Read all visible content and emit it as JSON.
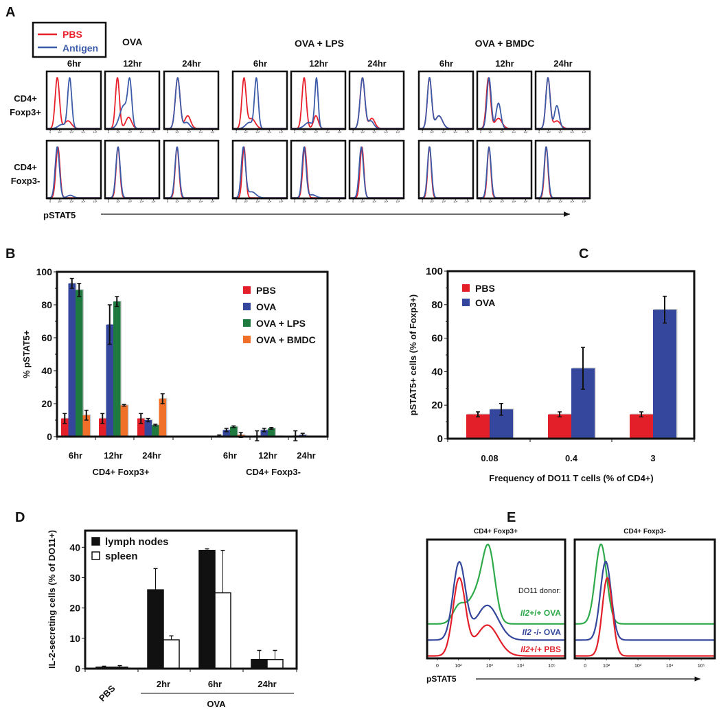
{
  "panels": {
    "a": "A",
    "b": "B",
    "c": "C",
    "d": "D",
    "e": "E"
  },
  "colors": {
    "pbs": "#e3202a",
    "ova": "#34479c",
    "lps": "#1f7a3f",
    "bmdc": "#f0702a",
    "hist_red": "#e8202a",
    "hist_blue": "#3b5ba8",
    "hist_green": "#2eaa4a"
  },
  "panel_a": {
    "legend": [
      "PBS",
      "Antigen"
    ],
    "conditions": [
      "OVA",
      "OVA + LPS",
      "OVA + BMDC"
    ],
    "times": [
      "6hr",
      "12hr",
      "24hr"
    ],
    "rows": [
      [
        "CD4+",
        "Foxp3+"
      ],
      [
        "CD4+",
        "Foxp3-"
      ]
    ],
    "xlabel": "pSTAT5"
  },
  "chart_data": [
    {
      "id": "B",
      "type": "bar",
      "ylabel": "% pSTAT5+",
      "ylim": [
        0,
        100
      ],
      "yticks": [
        0,
        20,
        40,
        60,
        80,
        100
      ],
      "categories": [
        "6hr",
        "12hr",
        "24hr",
        "6hr",
        "12hr",
        "24hr"
      ],
      "groups": [
        "CD4+ Foxp3+",
        "CD4+ Foxp3-"
      ],
      "legend_position": "top-right",
      "series": [
        {
          "name": "PBS",
          "color": "#e3202a",
          "values": [
            11,
            11,
            11,
            0.5,
            0.5,
            0.5
          ],
          "errors": [
            3,
            3,
            3,
            0.5,
            3,
            3
          ]
        },
        {
          "name": "OVA",
          "color": "#34479c",
          "values": [
            93,
            68,
            10,
            4,
            4,
            1
          ],
          "errors": [
            3,
            12,
            1,
            1,
            1,
            1
          ]
        },
        {
          "name": "OVA + LPS",
          "color": "#1f7a3f",
          "values": [
            89,
            82,
            7,
            6,
            5,
            0.3
          ],
          "errors": [
            4,
            3,
            0.5,
            0.5,
            0.5,
            0
          ]
        },
        {
          "name": "OVA + BMDC",
          "color": "#f0702a",
          "values": [
            13,
            19,
            23,
            1,
            0.3,
            0.3
          ],
          "errors": [
            3,
            0.5,
            3,
            1.5,
            0,
            0
          ]
        }
      ]
    },
    {
      "id": "C",
      "type": "bar",
      "ylabel": "pSTAT5+ cells (% of Foxp3+)",
      "xlabel": "Frequency of DO11 T cells (% of CD4+)",
      "ylim": [
        0,
        100
      ],
      "yticks": [
        0,
        20,
        40,
        60,
        80,
        100
      ],
      "categories": [
        "0.08",
        "0.4",
        "3"
      ],
      "legend_position": "top-left",
      "series": [
        {
          "name": "PBS",
          "color": "#e3202a",
          "values": [
            14.5,
            14.5,
            14.5
          ],
          "errors": [
            1.5,
            1.5,
            1.5
          ]
        },
        {
          "name": "OVA",
          "color": "#34479c",
          "values": [
            17.5,
            42,
            77
          ],
          "errors": [
            3.5,
            12.5,
            8
          ]
        }
      ]
    },
    {
      "id": "D",
      "type": "bar",
      "ylabel": "IL-2-secreting cells (% of DO11+)",
      "ylim": [
        0,
        45.5
      ],
      "yticks": [
        0,
        10,
        20,
        30,
        40
      ],
      "categories": [
        "PBS",
        "2hr",
        "6hr",
        "24hr"
      ],
      "group_label": "OVA",
      "legend_position": "top-left",
      "series": [
        {
          "name": "lymph nodes",
          "color": "#111111",
          "values": [
            0.5,
            26,
            39,
            3
          ],
          "errors": [
            0.3,
            7,
            0.5,
            3
          ]
        },
        {
          "name": "spleen",
          "color": "#ffffff",
          "values": [
            0.5,
            9.5,
            25,
            3
          ],
          "errors": [
            0.5,
            1.3,
            14,
            3
          ]
        }
      ]
    },
    {
      "id": "A",
      "type": "histogram",
      "xlim": [
        -0.3,
        4.3
      ],
      "xticks": [
        0,
        0.8,
        1.8,
        2.8,
        3.8
      ],
      "xtick_labels": [
        "0",
        "10²",
        "10³",
        "10⁴",
        "10⁵"
      ],
      "note": "log-scale pSTAT5 peak components [center, width, relative height]",
      "panels": [
        {
          "condition": "OVA",
          "time": "6hr",
          "row": "Foxp3+",
          "pbs": [
            [
              0.6,
              0.18,
              1
            ],
            [
              1.5,
              0.3,
              0.15
            ]
          ],
          "antigen": [
            [
              1.65,
              0.17,
              1
            ],
            [
              1.0,
              0.3,
              0.08
            ]
          ]
        },
        {
          "condition": "OVA",
          "time": "12hr",
          "row": "Foxp3+",
          "pbs": [
            [
              0.75,
              0.17,
              1
            ],
            [
              1.7,
              0.25,
              0.22
            ]
          ],
          "antigen": [
            [
              1.8,
              0.17,
              1
            ],
            [
              1.3,
              0.35,
              0.55
            ]
          ]
        },
        {
          "condition": "OVA",
          "time": "24hr",
          "row": "Foxp3+",
          "pbs": [
            [
              0.85,
              0.2,
              1
            ],
            [
              1.7,
              0.25,
              0.25
            ]
          ],
          "antigen": [
            [
              0.85,
              0.2,
              1
            ],
            [
              1.6,
              0.25,
              0.12
            ]
          ]
        },
        {
          "condition": "OVA + LPS",
          "time": "6hr",
          "row": "Foxp3+",
          "pbs": [
            [
              0.65,
              0.18,
              1
            ],
            [
              1.3,
              0.3,
              0.2
            ]
          ],
          "antigen": [
            [
              1.7,
              0.16,
              1
            ],
            [
              1.1,
              0.3,
              0.12
            ]
          ]
        },
        {
          "condition": "OVA + LPS",
          "time": "12hr",
          "row": "Foxp3+",
          "pbs": [
            [
              0.8,
              0.18,
              1
            ],
            [
              1.8,
              0.2,
              0.25
            ]
          ],
          "antigen": [
            [
              1.85,
              0.14,
              1
            ],
            [
              1.2,
              0.35,
              0.12
            ]
          ]
        },
        {
          "condition": "OVA + LPS",
          "time": "24hr",
          "row": "Foxp3+",
          "pbs": [
            [
              0.8,
              0.2,
              1
            ],
            [
              1.6,
              0.25,
              0.2
            ]
          ],
          "antigen": [
            [
              0.8,
              0.2,
              1
            ],
            [
              1.5,
              0.25,
              0.15
            ]
          ]
        },
        {
          "condition": "OVA + BMDC",
          "time": "6hr",
          "row": "Foxp3+",
          "pbs": [
            [
              0.6,
              0.18,
              1
            ],
            [
              1.4,
              0.3,
              0.25
            ]
          ],
          "antigen": [
            [
              0.6,
              0.18,
              1
            ],
            [
              1.4,
              0.3,
              0.25
            ]
          ]
        },
        {
          "condition": "OVA + BMDC",
          "time": "12hr",
          "row": "Foxp3+",
          "pbs": [
            [
              0.65,
              0.18,
              1
            ],
            [
              1.5,
              0.3,
              0.2
            ]
          ],
          "antigen": [
            [
              0.7,
              0.18,
              1
            ],
            [
              1.5,
              0.2,
              0.5
            ]
          ]
        },
        {
          "condition": "OVA + BMDC",
          "time": "24hr",
          "row": "Foxp3+",
          "pbs": [
            [
              0.75,
              0.18,
              1
            ],
            [
              1.5,
              0.3,
              0.15
            ]
          ],
          "antigen": [
            [
              0.75,
              0.18,
              1
            ],
            [
              1.5,
              0.2,
              0.45
            ]
          ]
        },
        {
          "condition": "OVA",
          "time": "6hr",
          "row": "Foxp3-",
          "pbs": [
            [
              0.65,
              0.17,
              1
            ]
          ],
          "antigen": [
            [
              0.6,
              0.18,
              1
            ],
            [
              1.7,
              0.25,
              0.05
            ]
          ]
        },
        {
          "condition": "OVA",
          "time": "12hr",
          "row": "Foxp3-",
          "pbs": [
            [
              0.8,
              0.16,
              1
            ]
          ],
          "antigen": [
            [
              0.8,
              0.18,
              1
            ]
          ]
        },
        {
          "condition": "OVA",
          "time": "24hr",
          "row": "Foxp3-",
          "pbs": [
            [
              0.8,
              0.16,
              1
            ]
          ],
          "antigen": [
            [
              0.8,
              0.18,
              1
            ]
          ]
        },
        {
          "condition": "OVA + LPS",
          "time": "6hr",
          "row": "Foxp3-",
          "pbs": [
            [
              0.65,
              0.15,
              1
            ]
          ],
          "antigen": [
            [
              0.6,
              0.18,
              1
            ],
            [
              1.3,
              0.35,
              0.12
            ]
          ]
        },
        {
          "condition": "OVA + LPS",
          "time": "12hr",
          "row": "Foxp3-",
          "pbs": [
            [
              0.85,
              0.17,
              1
            ]
          ],
          "antigen": [
            [
              0.8,
              0.17,
              1
            ],
            [
              1.5,
              0.3,
              0.06
            ]
          ]
        },
        {
          "condition": "OVA + LPS",
          "time": "24hr",
          "row": "Foxp3-",
          "pbs": [
            [
              0.75,
              0.16,
              1
            ]
          ],
          "antigen": [
            [
              0.7,
              0.18,
              1
            ]
          ]
        },
        {
          "condition": "OVA + BMDC",
          "time": "6hr",
          "row": "Foxp3-",
          "pbs": [
            [
              0.6,
              0.15,
              1
            ]
          ],
          "antigen": [
            [
              0.6,
              0.17,
              1
            ]
          ]
        },
        {
          "condition": "OVA + BMDC",
          "time": "12hr",
          "row": "Foxp3-",
          "pbs": [
            [
              0.7,
              0.15,
              1
            ]
          ],
          "antigen": [
            [
              0.7,
              0.17,
              1
            ]
          ]
        },
        {
          "condition": "OVA + BMDC",
          "time": "24hr",
          "row": "Foxp3-",
          "pbs": [
            [
              0.6,
              0.15,
              1
            ]
          ],
          "antigen": [
            [
              0.6,
              0.17,
              1
            ]
          ]
        }
      ]
    },
    {
      "id": "E",
      "type": "histogram",
      "titles": [
        "CD4+ Foxp3+",
        "CD4+ Foxp3-"
      ],
      "xlabel": "pSTAT5",
      "xlim": [
        -0.33,
        4.1
      ],
      "xticks": [
        0,
        0.67,
        1.67,
        2.67,
        3.67
      ],
      "xtick_labels": [
        "0",
        "10²",
        "10³",
        "10⁴",
        "10⁵"
      ],
      "legend_title": "DO11 donor:",
      "series": [
        {
          "gene": "Il2",
          "genotype": "+/+",
          "treatment": "OVA",
          "color": "#2eaa4a",
          "foxp3_pos": [
            [
              0.7,
              0.2,
              0.25
            ],
            [
              1.25,
              0.25,
              0.4
            ],
            [
              1.65,
              0.2,
              1
            ]
          ],
          "foxp3_neg": [
            [
              0.5,
              0.18,
              1
            ]
          ]
        },
        {
          "gene": "Il2",
          "genotype": " -/-",
          "treatment": " OVA",
          "color": "#34479c",
          "foxp3_pos": [
            [
              0.7,
              0.2,
              1
            ],
            [
              1.6,
              0.35,
              0.45
            ]
          ],
          "foxp3_neg": [
            [
              0.65,
              0.17,
              1
            ]
          ]
        },
        {
          "gene": "Il2",
          "genotype": "+/+",
          "treatment": " PBS",
          "color": "#e3202a",
          "foxp3_pos": [
            [
              0.7,
              0.2,
              1
            ],
            [
              1.6,
              0.35,
              0.4
            ]
          ],
          "foxp3_neg": [
            [
              0.7,
              0.16,
              1
            ]
          ]
        }
      ]
    }
  ]
}
